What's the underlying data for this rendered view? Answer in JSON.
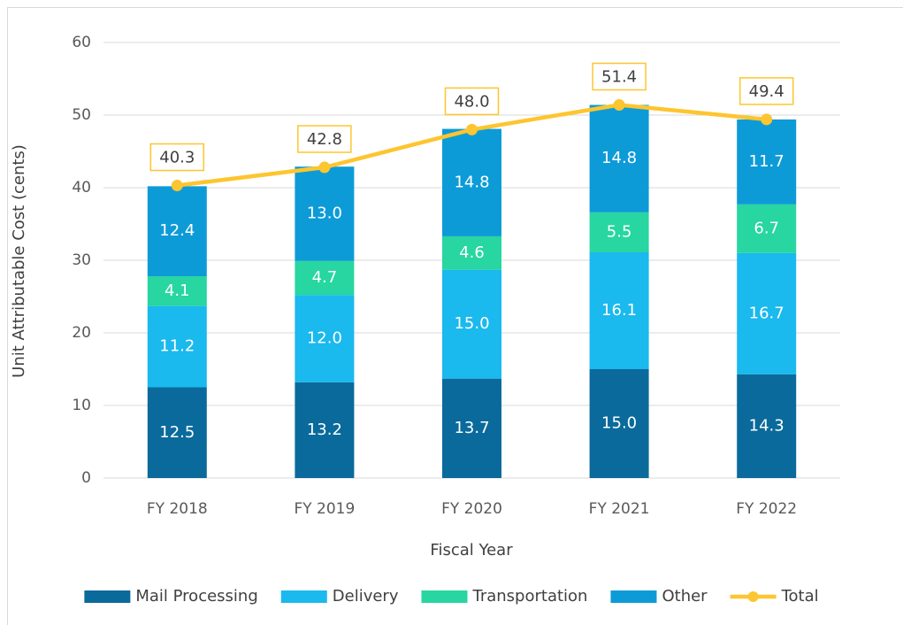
{
  "chart_data": {
    "type": "bar",
    "stacked": true,
    "x_label": "Fiscal Year",
    "y_label": "Unit Attributable Cost (cents)",
    "categories": [
      "FY 2018",
      "FY 2019",
      "FY 2020",
      "FY 2021",
      "FY 2022"
    ],
    "series": [
      {
        "name": "Mail Processing",
        "color": "#0a6a9c",
        "values": [
          12.5,
          13.2,
          13.7,
          15.0,
          14.3
        ],
        "value_labels": [
          "12.5",
          "13.2",
          "13.7",
          "15.0",
          "14.3"
        ]
      },
      {
        "name": "Delivery",
        "color": "#1ab9ee",
        "values": [
          11.2,
          12.0,
          15.0,
          16.1,
          16.7
        ],
        "value_labels": [
          "11.2",
          "12.0",
          "15.0",
          "16.1",
          "16.7"
        ]
      },
      {
        "name": "Transportation",
        "color": "#27d6a0",
        "values": [
          4.1,
          4.7,
          4.6,
          5.5,
          6.7
        ],
        "value_labels": [
          "4.1",
          "4.7",
          "4.6",
          "5.5",
          "6.7"
        ]
      },
      {
        "name": "Other",
        "color": "#0d9bd8",
        "values": [
          12.4,
          13.0,
          14.8,
          14.8,
          11.7
        ],
        "value_labels": [
          "12.4",
          "13.0",
          "14.8",
          "14.8",
          "11.7"
        ]
      },
      {
        "name": "Total",
        "type": "line",
        "color": "#fdc52f",
        "values": [
          40.3,
          42.8,
          48.0,
          51.4,
          49.4
        ],
        "value_labels": [
          "40.3",
          "42.8",
          "48.0",
          "51.4",
          "49.4"
        ]
      }
    ],
    "ylim": [
      0,
      60
    ],
    "yticks": [
      0,
      10,
      20,
      30,
      40,
      50,
      60
    ],
    "grid": true,
    "legend": "bottom"
  }
}
